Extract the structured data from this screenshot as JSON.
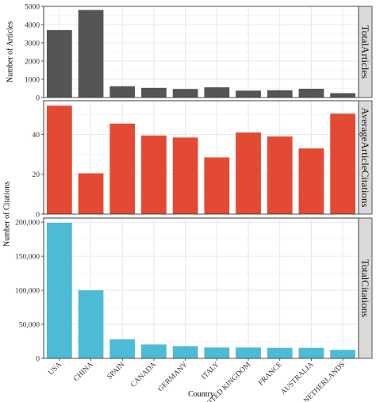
{
  "chart_data": {
    "type": "bar",
    "categories": [
      "USA",
      "CHINA",
      "SPAIN",
      "CANADA",
      "GERMANY",
      "ITALY",
      "UNITED KINGDOM",
      "FRANCE",
      "AUSTRALIA",
      "NETHERLANDS"
    ],
    "xlabel": "Country",
    "ylabel": "Number of Citations",
    "grid": true,
    "panels": [
      {
        "strip_label": "TotalArticles",
        "ylabel": "Number of Articles",
        "color": "#555555",
        "ylim": [
          0,
          5000
        ],
        "ticks": [
          0,
          1000,
          2000,
          3000,
          4000,
          5000
        ],
        "tick_labels": [
          "0",
          "1000",
          "2000",
          "3000",
          "4000",
          "5000"
        ],
        "values": [
          3700,
          4800,
          620,
          530,
          470,
          560,
          380,
          400,
          480,
          240
        ]
      },
      {
        "strip_label": "AverageArticleCitations",
        "color": "#E34A33",
        "ylim": [
          0,
          57
        ],
        "ticks": [
          0,
          20,
          40
        ],
        "tick_labels": [
          "0",
          "20",
          "40"
        ],
        "values": [
          54.5,
          20.5,
          45.5,
          39.5,
          38.5,
          28.5,
          41,
          39,
          33,
          50.5
        ]
      },
      {
        "strip_label": "TotalCitations",
        "color": "#4DBBD5",
        "ylim": [
          0,
          206000
        ],
        "ticks": [
          0,
          50000,
          100000,
          150000,
          200000
        ],
        "tick_labels": [
          "0",
          "50,000",
          "100,000",
          "150,000",
          "200,000"
        ],
        "values": [
          199000,
          100000,
          28000,
          20500,
          18000,
          16000,
          16000,
          15500,
          15500,
          12500
        ]
      }
    ]
  }
}
